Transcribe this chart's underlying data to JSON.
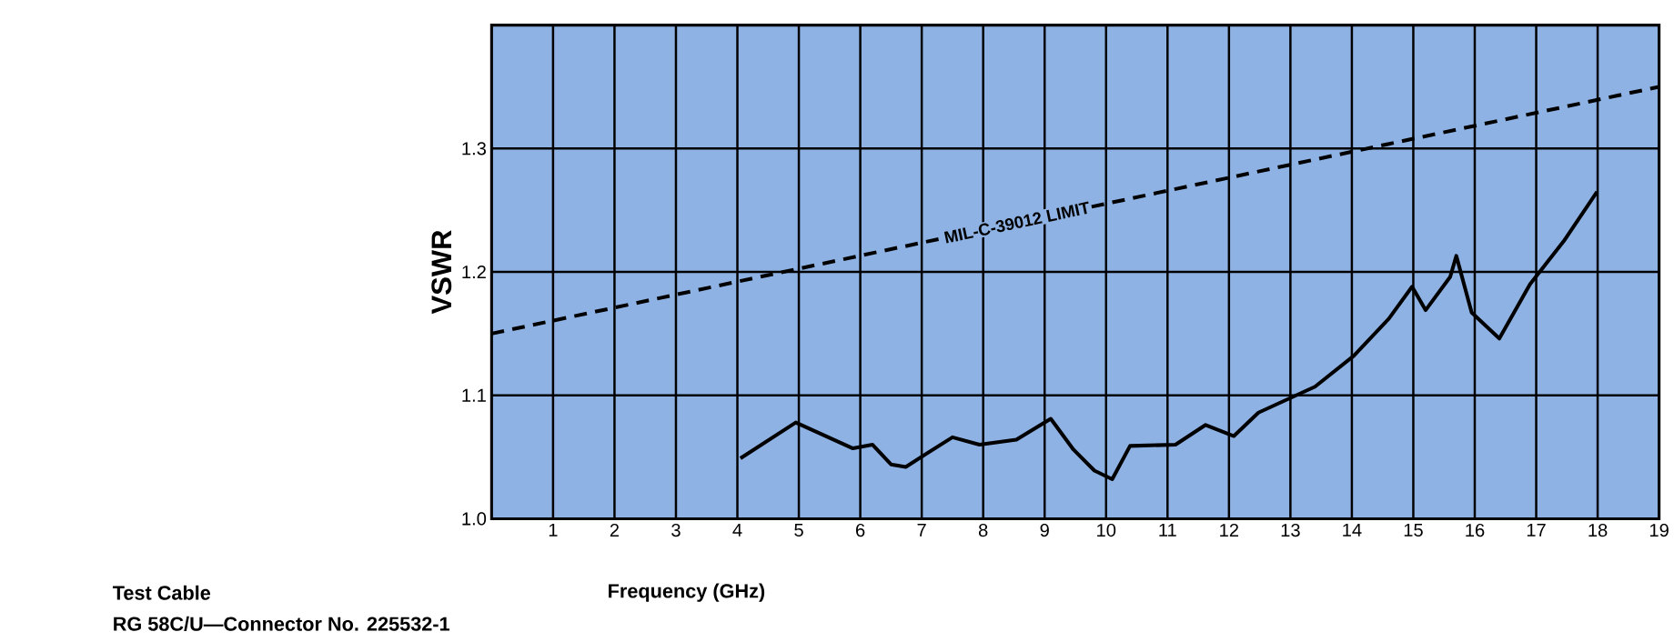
{
  "chart_data": {
    "type": "line",
    "xlabel": "Frequency (GHz)",
    "ylabel": "VSWR",
    "xlim": [
      0,
      19
    ],
    "ylim": [
      1.0,
      1.4
    ],
    "xticks": [
      1,
      2,
      3,
      4,
      5,
      6,
      7,
      8,
      9,
      10,
      11,
      12,
      13,
      14,
      15,
      16,
      17,
      18,
      19
    ],
    "yticks": [
      {
        "value": 1.0,
        "label": "1.0"
      },
      1.1,
      1.2,
      1.3
    ],
    "grid": true,
    "series": [
      {
        "name": "MIL-C-39012 LIMIT",
        "color": "#000000",
        "line_style": "dashed",
        "x": [
          0,
          19
        ],
        "values": [
          1.15,
          1.35
        ]
      },
      {
        "color": "#000000",
        "line_style": "solid",
        "x": [
          4.05,
          4.95,
          5.88,
          6.2,
          6.5,
          6.74,
          7.5,
          7.94,
          8.54,
          9.1,
          9.47,
          9.81,
          10.1,
          10.39,
          11.13,
          11.62,
          12.08,
          12.48,
          13.4,
          14.03,
          14.6,
          14.98,
          15.2,
          15.6,
          15.7,
          15.95,
          16.4,
          16.9,
          17.45,
          17.99
        ],
        "values": [
          1.049,
          1.078,
          1.057,
          1.06,
          1.044,
          1.042,
          1.066,
          1.06,
          1.064,
          1.081,
          1.056,
          1.039,
          1.032,
          1.059,
          1.06,
          1.076,
          1.067,
          1.086,
          1.107,
          1.132,
          1.162,
          1.188,
          1.169,
          1.196,
          1.213,
          1.167,
          1.146,
          1.19,
          1.225,
          1.265
        ]
      }
    ],
    "annotations": [
      "Test Cable",
      "RG 58C/U—Connector No. 225532-1"
    ]
  }
}
